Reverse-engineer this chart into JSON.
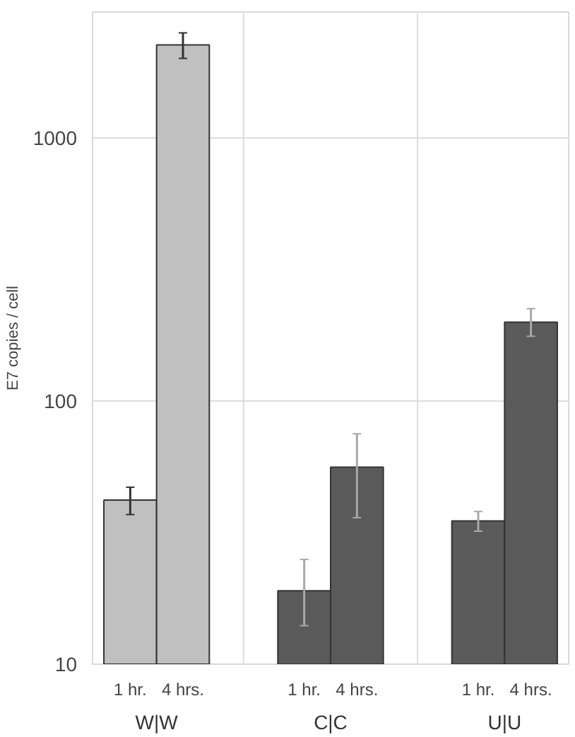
{
  "chart_data": {
    "type": "bar",
    "ylabel": "E7 copies / cell",
    "categories": [
      "W|W",
      "C|C",
      "U|U"
    ],
    "series": [
      {
        "name": "1 hr.",
        "colors": [
          "#c0c0c0",
          "#5a5a5a",
          "#5a5a5a"
        ],
        "values": [
          42,
          19,
          35
        ],
        "errors": [
          [
            37,
            47
          ],
          [
            14,
            25
          ],
          [
            32,
            38
          ]
        ]
      },
      {
        "name": "4 hrs.",
        "colors": [
          "#c0c0c0",
          "#5a5a5a",
          "#5a5a5a"
        ],
        "values": [
          2250,
          56,
          199
        ],
        "errors": [
          [
            2000,
            2500
          ],
          [
            36,
            75
          ],
          [
            176,
            224
          ]
        ]
      }
    ],
    "log": true,
    "ylim": [
      10,
      3000
    ],
    "yticks": [
      10,
      100,
      1000
    ],
    "grid": true
  }
}
